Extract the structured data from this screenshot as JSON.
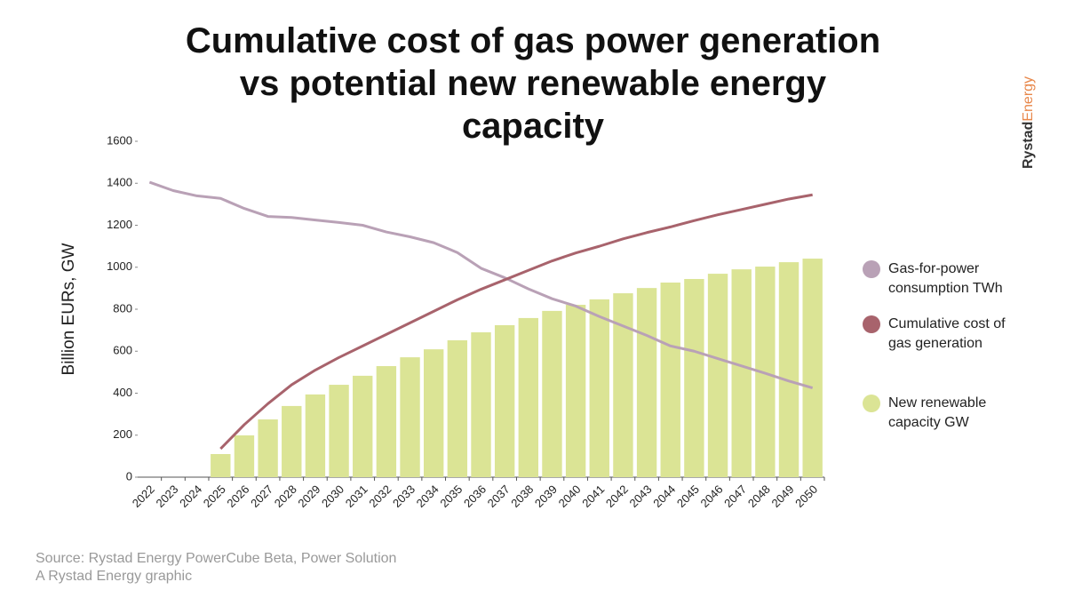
{
  "chart_data": {
    "type": "bar_line",
    "title": "Cumulative cost of gas power generation vs potential new renewable energy capacity",
    "y_label": "Billion EURs, GW",
    "brand": [
      "Rystad",
      "Energy"
    ],
    "source": "Source: Rystad Energy PowerCube Beta, Power Solution",
    "credit": "A Rystad Energy graphic",
    "categories": [
      "2022",
      "2023",
      "2024",
      "2025",
      "2026",
      "2027",
      "2028",
      "2029",
      "2030",
      "2031",
      "2032",
      "2033",
      "2034",
      "2035",
      "2036",
      "2037",
      "2038",
      "2039",
      "2040",
      "2041",
      "2042",
      "2043",
      "2044",
      "2045",
      "2046",
      "2047",
      "2048",
      "2049",
      "2050"
    ],
    "series": [
      {
        "name": "Gas-for-power consumption TWh",
        "kind": "line",
        "color": "#b9a1b6",
        "values": [
          1405,
          1365,
          1340,
          1328,
          1280,
          1242,
          1237,
          1225,
          1213,
          1200,
          1168,
          1145,
          1117,
          1070,
          995,
          950,
          897,
          850,
          815,
          765,
          720,
          675,
          625,
          600,
          565,
          530,
          495,
          458,
          425
        ]
      },
      {
        "name": "Cumulative cost of gas generation",
        "kind": "line",
        "color": "#a8636c",
        "values": [
          null,
          null,
          null,
          135,
          250,
          350,
          440,
          510,
          570,
          625,
          680,
          735,
          790,
          845,
          895,
          940,
          985,
          1030,
          1068,
          1100,
          1135,
          1165,
          1192,
          1222,
          1250,
          1275,
          1300,
          1325,
          1345
        ]
      },
      {
        "name": "New renewable capacity GW",
        "kind": "bar",
        "color": "#dbe495",
        "values": [
          null,
          null,
          null,
          110,
          199,
          275,
          339,
          394,
          440,
          483,
          529,
          571,
          609,
          652,
          690,
          724,
          758,
          792,
          821,
          847,
          876,
          901,
          927,
          944,
          969,
          990,
          1003,
          1024,
          1041
        ]
      }
    ],
    "ylim": [
      0,
      1600
    ],
    "yticks": [
      0,
      200,
      400,
      600,
      800,
      1000,
      1200,
      1400,
      1600
    ],
    "grid": false
  }
}
